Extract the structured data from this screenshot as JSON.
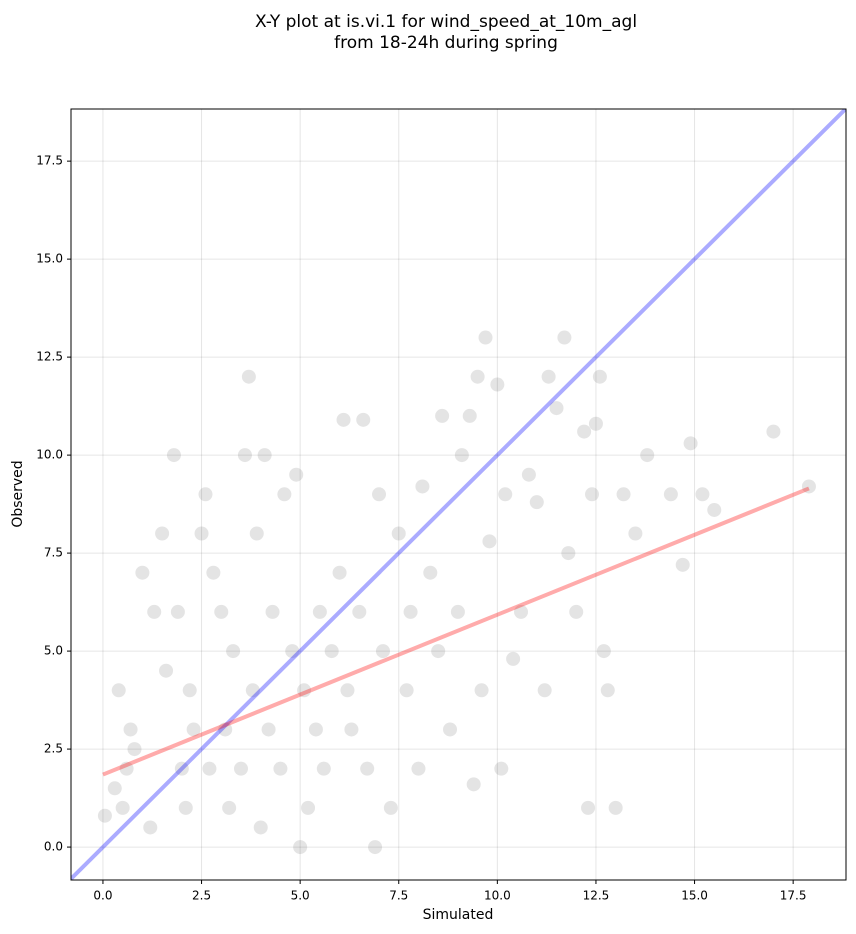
{
  "chart_data": {
    "type": "scatter",
    "title": [
      "X-Y plot at is.vi.1 for wind_speed_at_10m_agl",
      "from 18-24h during spring"
    ],
    "xlabel": "Simulated",
    "ylabel": "Observed",
    "xlim": [
      -0.81,
      18.84
    ],
    "ylim": [
      -0.84,
      18.83
    ],
    "xticks": [
      {
        "value": 0,
        "label": "0.0"
      },
      {
        "value": 2.5,
        "label": "2.5"
      },
      {
        "value": 5,
        "label": "5.0"
      },
      {
        "value": 7.5,
        "label": "7.5"
      },
      {
        "value": 10,
        "label": "10.0"
      },
      {
        "value": 12.5,
        "label": "12.5"
      },
      {
        "value": 15,
        "label": "15.0"
      },
      {
        "value": 17.5,
        "label": "17.5"
      }
    ],
    "yticks": [
      {
        "value": 0,
        "label": "0.0"
      },
      {
        "value": 2.5,
        "label": "2.5"
      },
      {
        "value": 5,
        "label": "5.0"
      },
      {
        "value": 7.5,
        "label": "7.5"
      },
      {
        "value": 10,
        "label": "10.0"
      },
      {
        "value": 12.5,
        "label": "12.5"
      },
      {
        "value": 15,
        "label": "15.0"
      },
      {
        "value": 17.5,
        "label": "17.5"
      }
    ],
    "grid": true,
    "color": "#404040",
    "x": [
      0.05,
      0.3,
      0.4,
      0.5,
      0.6,
      0.7,
      0.8,
      1.0,
      1.2,
      1.3,
      1.5,
      1.6,
      1.8,
      1.9,
      2.0,
      2.1,
      2.2,
      2.3,
      2.5,
      2.6,
      2.7,
      2.8,
      3.0,
      3.1,
      3.2,
      3.3,
      3.5,
      3.6,
      3.7,
      3.8,
      3.9,
      4.0,
      4.1,
      4.2,
      4.3,
      4.5,
      4.6,
      4.8,
      4.9,
      5.0,
      5.1,
      5.2,
      5.4,
      5.5,
      5.6,
      5.8,
      6.0,
      6.1,
      6.2,
      6.3,
      6.5,
      6.6,
      6.7,
      6.9,
      7.0,
      7.1,
      7.3,
      7.5,
      7.7,
      7.8,
      8.0,
      8.1,
      8.3,
      8.5,
      8.6,
      8.8,
      9.0,
      9.1,
      9.3,
      9.4,
      9.5,
      9.6,
      9.7,
      9.8,
      10.0,
      10.1,
      10.2,
      10.4,
      10.6,
      10.8,
      11.0,
      11.2,
      11.3,
      11.5,
      11.7,
      11.8,
      12.0,
      12.2,
      12.3,
      12.4,
      12.5,
      12.6,
      12.7,
      12.8,
      13.0,
      13.2,
      13.5,
      13.8,
      14.4,
      14.7,
      14.9,
      15.2,
      15.5,
      17.0,
      17.9
    ],
    "y": [
      0.8,
      1.5,
      4,
      1,
      2,
      3,
      2.5,
      7,
      0.5,
      6,
      8,
      4.5,
      10,
      6,
      2,
      1,
      4,
      3,
      8,
      9,
      2,
      7,
      6,
      3,
      1,
      5,
      2,
      10,
      12,
      4,
      8,
      0.5,
      10,
      3,
      6,
      2,
      9,
      5,
      9.5,
      0,
      4,
      1,
      3,
      6,
      2,
      5,
      7,
      10.9,
      4,
      3,
      6,
      10.9,
      2,
      0,
      9,
      5,
      1,
      8,
      4,
      6,
      2,
      9.2,
      7,
      5,
      11,
      3,
      6,
      10,
      11,
      1.6,
      12,
      4,
      13,
      7.8,
      11.8,
      2,
      9,
      4.8,
      6,
      9.5,
      8.8,
      4,
      12,
      11.2,
      13,
      7.5,
      6,
      10.6,
      1,
      9,
      10.8,
      12,
      5,
      4,
      1,
      9,
      8,
      10,
      9,
      7.2,
      10.3,
      9,
      8.6,
      10.6,
      9.2
    ],
    "lines": [
      {
        "color": "#0000ff",
        "x": [
          -0.81,
          18.84
        ],
        "y": [
          -0.81,
          18.84
        ]
      },
      {
        "color": "#ff0000",
        "x": [
          0,
          17.9
        ],
        "y": [
          1.85,
          9.15
        ]
      }
    ]
  }
}
